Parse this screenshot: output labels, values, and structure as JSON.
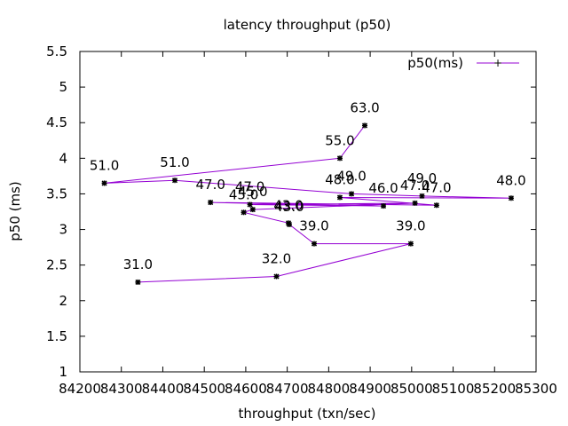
{
  "chart_data": {
    "type": "line",
    "title": "latency throughput (p50)",
    "xlabel": "throughput (txn/sec)",
    "ylabel": "p50 (ms)",
    "xlim": [
      84200,
      85300
    ],
    "ylim": [
      1,
      5.5
    ],
    "xticks": [
      84200,
      84300,
      84400,
      84500,
      84600,
      84700,
      84800,
      84900,
      85000,
      85100,
      85200,
      85300
    ],
    "yticks": [
      1,
      1.5,
      2,
      2.5,
      3,
      3.5,
      4,
      4.5,
      5,
      5.5
    ],
    "grid": false,
    "legend_position": "top-right",
    "series": [
      {
        "name": "p50(ms)",
        "color": "#9400d3",
        "points": [
          {
            "x": 84887,
            "y": 4.46,
            "label": "63.0"
          },
          {
            "x": 84827,
            "y": 4.0,
            "label": "55.0"
          },
          {
            "x": 84259,
            "y": 3.65,
            "label": "51.0"
          },
          {
            "x": 84429,
            "y": 3.69,
            "label": "51.0"
          },
          {
            "x": 84855,
            "y": 3.5,
            "label": "49.0"
          },
          {
            "x": 85025,
            "y": 3.47,
            "label": "49.0"
          },
          {
            "x": 85240,
            "y": 3.44,
            "label": "48.0"
          },
          {
            "x": 84827,
            "y": 3.45,
            "label": "48.0"
          },
          {
            "x": 85060,
            "y": 3.34,
            "label": "47.0"
          },
          {
            "x": 84515,
            "y": 3.38,
            "label": "47.0"
          },
          {
            "x": 84932,
            "y": 3.33,
            "label": "46.0"
          },
          {
            "x": 84610,
            "y": 3.35,
            "label": "47.0"
          },
          {
            "x": 85008,
            "y": 3.37,
            "label": "47.0"
          },
          {
            "x": 84617,
            "y": 3.28,
            "label": "45.0"
          },
          {
            "x": 84595,
            "y": 3.24,
            "label": "45.0"
          },
          {
            "x": 84703,
            "y": 3.09,
            "label": "43.0"
          },
          {
            "x": 84705,
            "y": 3.07,
            "label": "43.0"
          },
          {
            "x": 84765,
            "y": 2.8,
            "label": "39.0"
          },
          {
            "x": 84998,
            "y": 2.8,
            "label": "39.0"
          },
          {
            "x": 84674,
            "y": 2.34,
            "label": "32.0"
          },
          {
            "x": 84340,
            "y": 2.26,
            "label": "31.0"
          }
        ]
      }
    ]
  }
}
